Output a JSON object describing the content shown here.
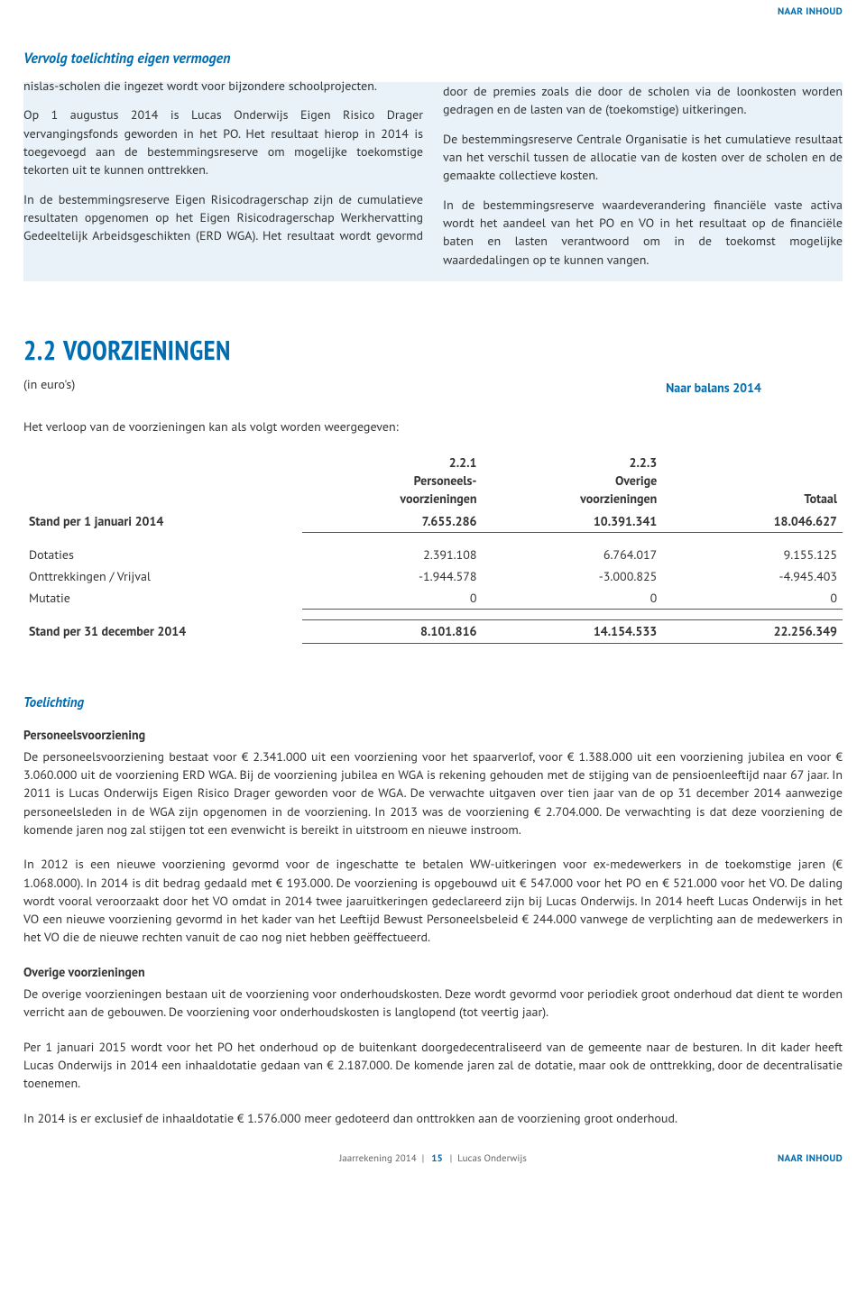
{
  "colors": {
    "accent": "#006db0",
    "box_bg": "#e8f2f8",
    "text": "#333333",
    "rule": "#555555"
  },
  "typography": {
    "body_fontsize_pt": 10.5,
    "heading_fontsize_pt": 22
  },
  "nav": {
    "naar_inhoud": "NAAR INHOUD"
  },
  "intro": {
    "continuation_heading": "Vervolg toelichting eigen vermogen",
    "paragraphs": [
      "nislas-scholen die ingezet wordt voor bijzondere schoolprojecten.",
      "Op 1 augustus 2014 is Lucas Onderwijs Eigen Risico Drager vervangingsfonds geworden in het PO. Het resultaat hierop in 2014 is toegevoegd aan de bestemmingsreserve om mogelijke toekomstige tekorten uit te kunnen onttrekken.",
      "In de bestemmingsreserve Eigen Risicodragerschap zijn de cumulatieve resultaten opgenomen op het Eigen Risicodragerschap Werkhervatting Gedeeltelijk Arbeidsgeschikten (ERD WGA). Het resultaat wordt gevormd door de premies zoals die door de scholen via de loonkosten worden gedragen en de lasten van de (toekomstige) uitkeringen.",
      "De bestemmingsreserve Centrale Organisatie is het cumulatieve resultaat van het verschil tussen de allocatie van de kosten over de scholen en de gemaakte collectieve kosten.",
      "In de bestemmingsreserve waardeverandering financiële vaste activa wordt het aandeel van het PO en VO in het resultaat op de financiële baten en lasten verantwoord om in de toekomst mogelijke waardedalingen op te kunnen vangen."
    ]
  },
  "section": {
    "number": "2.2",
    "title": "VOORZIENINGEN",
    "balance_link": "Naar balans 2014",
    "unit": "(in euro's)",
    "table_intro": "Het verloop van de voorzieningen kan als volgt worden weergegeven:"
  },
  "table": {
    "type": "table",
    "columns": [
      {
        "id": "c1",
        "num": "2.2.1",
        "label1": "Personeels-",
        "label2": "voorzieningen"
      },
      {
        "id": "c2",
        "num": "2.2.3",
        "label1": "Overige",
        "label2": "voorzieningen"
      },
      {
        "id": "c3",
        "num": "",
        "label1": "",
        "label2": "Totaal"
      }
    ],
    "rows": [
      {
        "label": "Stand per 1 januari 2014",
        "c1": "7.655.286",
        "c2": "10.391.341",
        "c3": "18.046.627",
        "bold": true,
        "rule_below": true
      },
      {
        "spacer": true
      },
      {
        "label": "Dotaties",
        "c1": "2.391.108",
        "c2": "6.764.017",
        "c3": "9.155.125"
      },
      {
        "label": "Onttrekkingen / Vrijval",
        "c1": "-1.944.578",
        "c2": "-3.000.825",
        "c3": "-4.945.403"
      },
      {
        "label": "Mutatie",
        "c1": "0",
        "c2": "0",
        "c3": "0",
        "rule_below": true
      },
      {
        "spacer": true
      },
      {
        "label": "Stand per 31 december 2014",
        "c1": "8.101.816",
        "c2": "14.154.533",
        "c3": "22.256.349",
        "bold": true,
        "rule_below": true,
        "rule_above": true
      }
    ]
  },
  "toelichting": {
    "heading": "Toelichting",
    "blocks": [
      {
        "subhead": "Personeelsvoorziening",
        "text": "De personeelsvoorziening bestaat voor € 2.341.000 uit een voorziening voor het spaarverlof, voor € 1.388.000 uit een voorziening jubilea en voor € 3.060.000 uit de voorziening ERD WGA.  Bij de voorziening jubilea en WGA is rekening gehouden met de stijging van de pensioenleeftijd naar 67 jaar. In 2011 is Lucas Onderwijs Eigen Risico Drager geworden voor de WGA. De verwachte uitgaven over tien jaar van de op 31 december 2014 aanwezige personeelsleden in de WGA zijn opgenomen in de voorziening.  In 2013 was de voorziening € 2.704.000. De verwachting is dat deze voorziening de komende jaren nog zal stijgen tot een evenwicht is bereikt in uitstroom en nieuwe instroom."
      },
      {
        "text": "In 2012 is een nieuwe voorziening gevormd voor de ingeschatte te betalen WW-uitkeringen voor ex-medewerkers in de toekomstige jaren (€ 1.068.000).  In 2014 is dit bedrag gedaald met € 193.000.  De voorziening is opgebouwd uit € 547.000 voor het PO en € 521.000 voor het VO.  De daling wordt vooral veroorzaakt door het VO omdat in 2014 twee jaaruitkeringen gedeclareerd zijn bij Lucas Onderwijs. In 2014 heeft Lucas Onderwijs in het VO een nieuwe voorziening gevormd in het kader van het Leeftijd Bewust Personeelsbeleid € 244.000 vanwege de verplichting aan de medewerkers in het VO die de nieuwe rechten vanuit de cao nog niet hebben geëffectueerd."
      },
      {
        "subhead": "Overige voorzieningen",
        "text": "De overige voorzieningen bestaan uit de voorziening voor onderhoudskosten. Deze wordt gevormd voor periodiek groot onderhoud dat dient te worden verricht aan de gebouwen. De voorziening voor onderhoudskosten is langlopend (tot veertig jaar)."
      },
      {
        "text": "Per 1 januari 2015 wordt voor het PO het onderhoud op de buitenkant doorgedecentraliseerd van de gemeente naar de besturen. In dit kader heeft Lucas Onderwijs in 2014 een inhaaldotatie gedaan van € 2.187.000. De komende jaren zal de dotatie, maar ook de onttrekking, door de decentralisatie toenemen."
      },
      {
        "text": "In 2014 is er exclusief de inhaaldotatie € 1.576.000 meer gedoteerd dan onttrokken aan de voorziening groot onderhoud."
      }
    ]
  },
  "footer": {
    "left": "Jaarrekening 2014",
    "page": "15",
    "right": "Lucas Onderwijs",
    "naar": "NAAR INHOUD"
  }
}
